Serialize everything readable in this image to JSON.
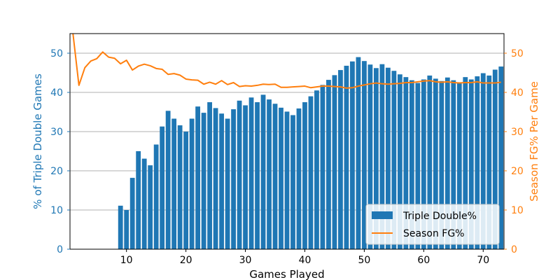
{
  "chart_data": {
    "type": "bar+line",
    "xlabel": "Games Played",
    "ylabel_left": "% of Triple Double Games",
    "ylabel_right": "Season FG% Per Game",
    "xlim": [
      0.5,
      73.5
    ],
    "ylim_left": [
      0,
      55
    ],
    "ylim_right": [
      0,
      55
    ],
    "x_ticks": [
      10,
      20,
      30,
      40,
      50,
      60,
      70
    ],
    "y_ticks_left": [
      0,
      10,
      20,
      30,
      40,
      50
    ],
    "y_ticks_right": [
      0,
      10,
      20,
      30,
      40,
      50
    ],
    "grid": "horizontal",
    "legend": {
      "position": "bottom-right",
      "entries": [
        "Triple Double%",
        "Season FG%"
      ]
    },
    "colors": {
      "bars": "#1f77b4",
      "line": "#ff7f0e",
      "left_axis": "#1f77b4",
      "right_axis": "#ff7f0e"
    },
    "series": [
      {
        "name": "Triple Double%",
        "kind": "bar",
        "x": [
          9,
          10,
          11,
          12,
          13,
          14,
          15,
          16,
          17,
          18,
          19,
          20,
          21,
          22,
          23,
          24,
          25,
          26,
          27,
          28,
          29,
          30,
          31,
          32,
          33,
          34,
          35,
          36,
          37,
          38,
          39,
          40,
          41,
          42,
          43,
          44,
          45,
          46,
          47,
          48,
          49,
          50,
          51,
          52,
          53,
          54,
          55,
          56,
          57,
          58,
          59,
          60,
          61,
          62,
          63,
          64,
          65,
          66,
          67,
          68,
          69,
          70,
          71,
          72,
          73
        ],
        "values": [
          11.1,
          10.0,
          18.2,
          25.0,
          23.1,
          21.4,
          26.7,
          31.3,
          35.3,
          33.3,
          31.6,
          30.0,
          33.3,
          36.4,
          34.8,
          37.5,
          36.0,
          34.6,
          33.3,
          35.7,
          37.9,
          36.7,
          38.7,
          37.5,
          39.4,
          38.2,
          37.1,
          36.1,
          35.1,
          34.2,
          35.9,
          37.5,
          39.0,
          40.5,
          41.9,
          43.2,
          44.4,
          45.7,
          46.8,
          47.9,
          49.0,
          48.0,
          47.1,
          46.2,
          47.2,
          46.3,
          45.5,
          44.6,
          43.9,
          43.1,
          42.4,
          43.3,
          44.3,
          43.5,
          42.9,
          43.8,
          43.1,
          42.4,
          43.9,
          43.3,
          44.1,
          44.9,
          44.3,
          45.8,
          46.6
        ]
      },
      {
        "name": "Season FG%",
        "kind": "line",
        "x": [
          1,
          2,
          3,
          4,
          5,
          6,
          7,
          8,
          9,
          10,
          11,
          12,
          13,
          14,
          15,
          16,
          17,
          18,
          19,
          20,
          21,
          22,
          23,
          24,
          25,
          26,
          27,
          28,
          29,
          30,
          31,
          32,
          33,
          34,
          35,
          36,
          37,
          38,
          39,
          40,
          41,
          42,
          43,
          44,
          45,
          46,
          47,
          48,
          49,
          50,
          51,
          52,
          53,
          54,
          55,
          56,
          57,
          58,
          59,
          60,
          61,
          62,
          63,
          64,
          65,
          66,
          67,
          68,
          69,
          70,
          71,
          72,
          73
        ],
        "values": [
          55.0,
          41.8,
          46.3,
          48.0,
          48.6,
          50.3,
          49.0,
          48.7,
          47.3,
          48.2,
          45.7,
          46.7,
          47.2,
          46.8,
          46.1,
          45.9,
          44.6,
          44.8,
          44.4,
          43.4,
          43.2,
          43.1,
          42.1,
          42.6,
          42.1,
          43.0,
          42.0,
          42.5,
          41.5,
          41.7,
          41.6,
          41.8,
          42.1,
          42.0,
          42.1,
          41.3,
          41.3,
          41.4,
          41.5,
          41.6,
          41.2,
          41.4,
          41.6,
          41.6,
          41.5,
          41.4,
          41.1,
          41.2,
          41.6,
          41.9,
          42.2,
          42.4,
          42.2,
          42.1,
          42.2,
          42.3,
          42.5,
          42.5,
          42.7,
          42.9,
          43.0,
          42.7,
          42.6,
          42.7,
          42.5,
          42.4,
          42.5,
          42.5,
          42.7,
          42.4,
          42.4,
          42.4,
          42.6
        ]
      }
    ]
  }
}
